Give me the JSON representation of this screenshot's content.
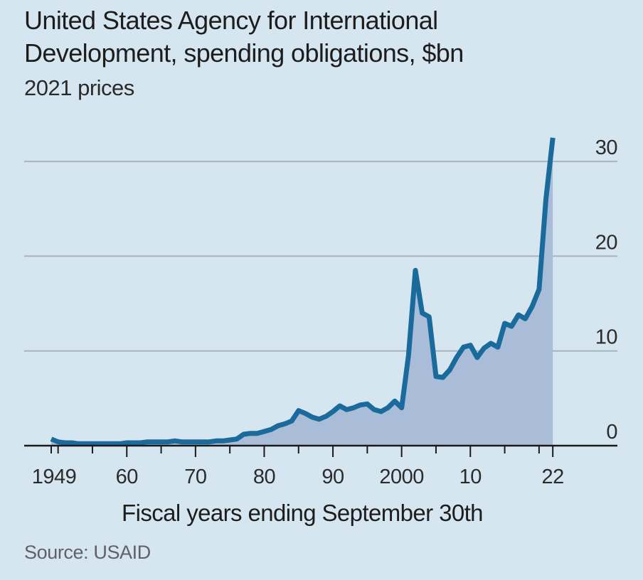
{
  "colors": {
    "background": "#d6e6f0",
    "line": "#1a6b9c",
    "area": "#a9bdd8",
    "gridline": "#a5b4bd",
    "axis": "#1a1a1a"
  },
  "chart_data": {
    "type": "area",
    "title": "United States Agency for International Development, spending obligations, $bn",
    "subtitle": "2021 prices",
    "xlabel": "Fiscal years ending September 30th",
    "ylabel": "",
    "source": "Source: USAID",
    "xlim": [
      1949,
      2022
    ],
    "ylim": [
      0,
      30
    ],
    "y_ticks": [
      0,
      10,
      20,
      30
    ],
    "y_tick_labels": [
      "0",
      "10",
      "20",
      "30"
    ],
    "y_axis_position": "right",
    "x_tick_labels": [
      {
        "year": 1949,
        "label": "1949"
      },
      {
        "year": 1960,
        "label": "60"
      },
      {
        "year": 1970,
        "label": "70"
      },
      {
        "year": 1980,
        "label": "80"
      },
      {
        "year": 1990,
        "label": "90"
      },
      {
        "year": 2000,
        "label": "2000"
      },
      {
        "year": 2010,
        "label": "10"
      },
      {
        "year": 2022,
        "label": "22"
      }
    ],
    "x_minor_ticks": [
      1949,
      1950,
      1955,
      1960,
      1965,
      1970,
      1975,
      1980,
      1985,
      1990,
      1995,
      2000,
      2005,
      2010,
      2015,
      2020,
      2022
    ],
    "grid": true,
    "series": [
      {
        "name": "USAID spending obligations",
        "x": [
          1949,
          1950,
          1951,
          1952,
          1953,
          1954,
          1955,
          1956,
          1957,
          1958,
          1959,
          1960,
          1961,
          1962,
          1963,
          1964,
          1965,
          1966,
          1967,
          1968,
          1969,
          1970,
          1971,
          1972,
          1973,
          1974,
          1975,
          1976,
          1977,
          1978,
          1979,
          1980,
          1981,
          1982,
          1983,
          1984,
          1985,
          1986,
          1987,
          1988,
          1989,
          1990,
          1991,
          1992,
          1993,
          1994,
          1995,
          1996,
          1997,
          1998,
          1999,
          2000,
          2001,
          2002,
          2003,
          2004,
          2005,
          2006,
          2007,
          2008,
          2009,
          2010,
          2011,
          2012,
          2013,
          2014,
          2015,
          2016,
          2017,
          2018,
          2019,
          2020,
          2021,
          2022
        ],
        "values": [
          0.7,
          0.4,
          0.3,
          0.3,
          0.2,
          0.2,
          0.2,
          0.2,
          0.2,
          0.2,
          0.2,
          0.3,
          0.3,
          0.3,
          0.4,
          0.4,
          0.4,
          0.4,
          0.5,
          0.4,
          0.4,
          0.4,
          0.4,
          0.4,
          0.5,
          0.5,
          0.6,
          0.7,
          1.2,
          1.3,
          1.3,
          1.5,
          1.7,
          2.1,
          2.3,
          2.6,
          3.7,
          3.4,
          3.0,
          2.8,
          3.1,
          3.6,
          4.2,
          3.8,
          4.0,
          4.3,
          4.4,
          3.8,
          3.6,
          4.0,
          4.7,
          4.0,
          9.5,
          18.5,
          14.0,
          13.6,
          7.3,
          7.2,
          8.0,
          9.3,
          10.4,
          10.6,
          9.3,
          10.3,
          10.8,
          10.4,
          12.9,
          12.6,
          13.8,
          13.4,
          14.7,
          16.5,
          26.0,
          32.5
        ]
      }
    ]
  }
}
